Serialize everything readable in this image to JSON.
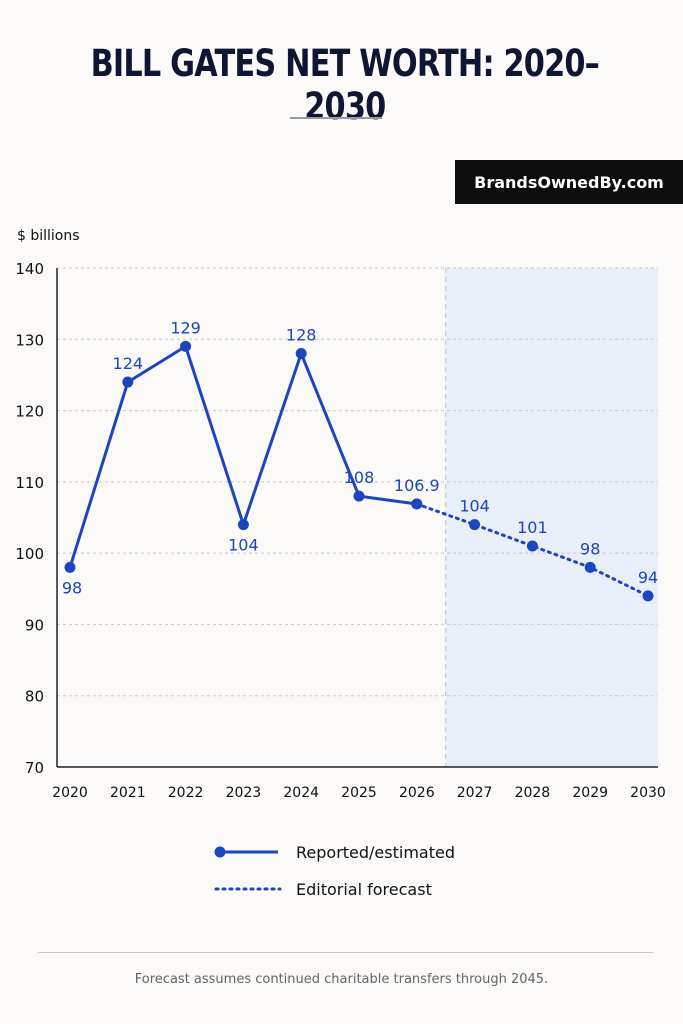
{
  "title": "BILL GATES NET WORTH: 2020–2030",
  "brand_label": "BrandsOwnedBy.com",
  "footnote": "Forecast assumes continued charitable transfers through 2045.",
  "colors": {
    "line": "#1d45bf",
    "forecast_band": "#e9eff9",
    "brand_bg": "#0d0d0d"
  },
  "chart_data": {
    "type": "line",
    "ylabel": "$ billions",
    "ylim": [
      70,
      140
    ],
    "yticks": [
      70,
      80,
      90,
      100,
      110,
      120,
      130,
      140
    ],
    "x": [
      2020,
      2021,
      2022,
      2023,
      2024,
      2025,
      2026,
      2027,
      2028,
      2029,
      2030
    ],
    "grid": true,
    "legend_position": "bottom",
    "series": [
      {
        "name": "Reported/estimated",
        "style": "solid",
        "x": [
          2020,
          2021,
          2022,
          2023,
          2024,
          2025,
          2026
        ],
        "values": [
          98,
          124,
          129,
          104,
          128,
          108,
          106.9
        ],
        "labels": [
          "98",
          "124",
          "129",
          "104",
          "128",
          "108",
          "106.9"
        ]
      },
      {
        "name": "Editorial forecast",
        "style": "dotted",
        "x": [
          2026,
          2027,
          2028,
          2029,
          2030
        ],
        "values": [
          106.9,
          104,
          101,
          98,
          94
        ],
        "labels": [
          "",
          "104",
          "101",
          "98",
          "94"
        ]
      }
    ],
    "forecast_start": 2026.5
  }
}
